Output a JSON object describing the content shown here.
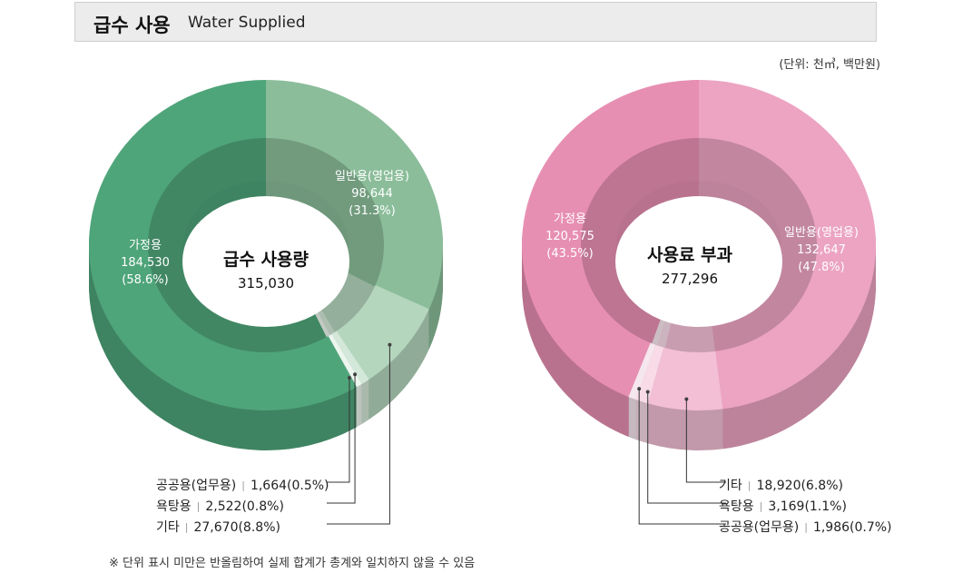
{
  "header": {
    "title_ko": "급수 사용",
    "title_en": "Water Supplied"
  },
  "unit_note": "(단위: 천㎥, 백만원)",
  "footnote": "※ 단위 표시 미만은 반올림하여 실제 합계가 총계와 일치하지 않을 수 있음",
  "chart_data": [
    {
      "type": "pie",
      "title": "급수 사용량",
      "total": "315,030",
      "slices": [
        {
          "name": "일반용(영업용)",
          "value": 98644,
          "value_label": "98,644",
          "pct": "(31.3%)",
          "color": "#8bbd9a"
        },
        {
          "name": "기타",
          "value": 27670,
          "value_label": "27,670",
          "pct": "(8.8%)",
          "color": "#b4d6bd"
        },
        {
          "name": "욕탕용",
          "value": 2522,
          "value_label": "2,522",
          "pct": "(0.8%)",
          "color": "#d3e8d8"
        },
        {
          "name": "공공용(업무용)",
          "value": 1664,
          "value_label": "1,664",
          "pct": "(0.5%)",
          "color": "#ecf5ee"
        },
        {
          "name": "가정용",
          "value": 184530,
          "value_label": "184,530",
          "pct": "(58.6%)",
          "color": "#4fa57a"
        }
      ],
      "callouts": [
        {
          "name": "공공용(업무용)",
          "text": "1,664(0.5%)"
        },
        {
          "name": "욕탕용",
          "text": "2,522(0.8%)"
        },
        {
          "name": "기타",
          "text": "27,670(8.8%)"
        }
      ]
    },
    {
      "type": "pie",
      "title": "사용료 부과",
      "total": "277,296",
      "slices": [
        {
          "name": "일반용(영업용)",
          "value": 132647,
          "value_label": "132,647",
          "pct": "(47.8%)",
          "color": "#eca4c2"
        },
        {
          "name": "기타",
          "value": 18920,
          "value_label": "18,920",
          "pct": "(6.8%)",
          "color": "#f3bfd5"
        },
        {
          "name": "욕탕용",
          "value": 3169,
          "value_label": "3,169",
          "pct": "(1.1%)",
          "color": "#f8dbe7"
        },
        {
          "name": "공공용(업무용)",
          "value": 1986,
          "value_label": "1,986",
          "pct": "(0.7%)",
          "color": "#f6e6ee"
        },
        {
          "name": "가정용",
          "value": 120575,
          "value_label": "120,575",
          "pct": "(43.5%)",
          "color": "#e78fb2"
        }
      ],
      "callouts": [
        {
          "name": "기타",
          "text": "18,920(6.8%)"
        },
        {
          "name": "욕탕용",
          "text": "3,169(1.1%)"
        },
        {
          "name": "공공용(업무용)",
          "text": "1,986(0.7%)"
        }
      ]
    }
  ]
}
